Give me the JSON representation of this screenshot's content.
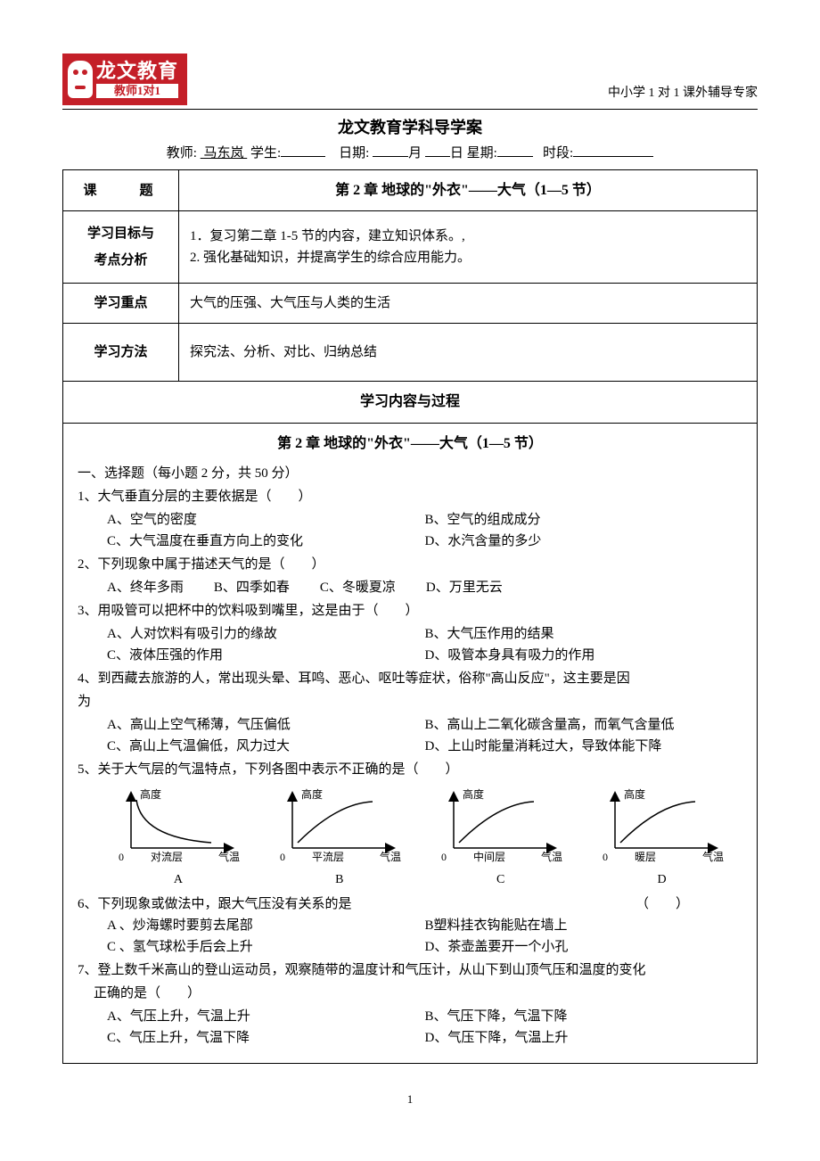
{
  "logo": {
    "brand_main": "龙文教育",
    "brand_sub": "教师1对1"
  },
  "tagline": "中小学 1 对 1 课外辅导专家",
  "doc_title": "龙文教育学科导学案",
  "meta": {
    "teacher_label": "教师:",
    "teacher_name": "马东岚",
    "student_label": "学生:",
    "date_label": "日期:",
    "month_unit": "月",
    "day_unit": "日",
    "weekday_label": "星期:",
    "period_label": "时段:"
  },
  "info_table": {
    "topic_label": "课　　题",
    "topic_value": "第 2 章 地球的\"外衣\"——大气（1—5 节）",
    "goal_label": "学习目标与\n考点分析",
    "goal_line1": "1．复习第二章 1-5 节的内容，建立知识体系。,",
    "goal_line2": "2. 强化基础知识，并提高学生的综合应用能力。",
    "focus_label": "学习重点",
    "focus_value": "大气的压强、大气压与人类的生活",
    "method_label": "学习方法",
    "method_value": "探究法、分析、对比、归纳总结",
    "section_header": "学习内容与过程"
  },
  "content": {
    "chapter_title": "第 2 章 地球的\"外衣\"——大气（1—5 节）",
    "section1_header": "一、选择题（每小题 2 分，共 50 分）",
    "q1": {
      "stem": "1、大气垂直分层的主要依据是（　　）",
      "A": "A、空气的密度",
      "B": "B、空气的组成成分",
      "C": "C、大气温度在垂直方向上的变化",
      "D": "D、水汽含量的多少"
    },
    "q2": {
      "stem": "2、下列现象中属于描述天气的是（　　）",
      "A": "A、终年多雨",
      "B": "B、四季如春",
      "C": "C、冬暖夏凉",
      "D": "D、万里无云"
    },
    "q3": {
      "stem": "3、用吸管可以把杯中的饮料吸到嘴里，这是由于（　　）",
      "A": "A、人对饮料有吸引力的缘故",
      "B": "B、大气压作用的结果",
      "C": "C、液体压强的作用",
      "D": "D、吸管本身具有吸力的作用"
    },
    "q4": {
      "stem_a": "4、到西藏去旅游的人，常出现头晕、耳鸣、恶心、呕吐等症状，俗称\"高山反应\"，这主要是因",
      "stem_b": "为",
      "A": "A、高山上空气稀薄，气压偏低",
      "B": "B、高山上二氧化碳含量高，而氧气含量低",
      "C": "C、高山上气温偏低，风力过大",
      "D": "D、上山时能量消耗过大，导致体能下降"
    },
    "q5": {
      "stem": "5、关于大气层的气温特点，下列各图中表示不正确的是（　　）",
      "charts": [
        {
          "letter": "A",
          "ylab": "高度",
          "xlab": "气温",
          "axis_name": "对流层",
          "curve": "concave_down"
        },
        {
          "letter": "B",
          "ylab": "高度",
          "xlab": "气温",
          "axis_name": "平流层",
          "curve": "concave_up"
        },
        {
          "letter": "C",
          "ylab": "高度",
          "xlab": "气温",
          "axis_name": "中间层",
          "curve": "concave_up"
        },
        {
          "letter": "D",
          "ylab": "高度",
          "xlab": "气温",
          "axis_name": "暖层",
          "curve": "concave_up"
        }
      ],
      "axis_color": "#000000",
      "curve_color": "#000000",
      "stroke_width": 1.5
    },
    "q6": {
      "stem": "6、下列现象或做法中，跟大气压没有关系的是",
      "paren": "（　　）",
      "A": "A 、炒海螺时要剪去尾部",
      "B": "B塑料挂衣钩能贴在墙上",
      "C": "C 、氢气球松手后会上升",
      "D": "D、茶壶盖要开一个小孔"
    },
    "q7": {
      "stem_a": "7、登上数千米高山的登山运动员，观察随带的温度计和气压计，从山下到山顶气压和温度的变化",
      "stem_b": "正确的是（　　）",
      "A": "A、气压上升，气温上升",
      "B": "B、气压下降，气温下降",
      "C": "C、气压上升，气温下降",
      "D": "D、气压下降，气温上升"
    }
  },
  "page_number": "1"
}
